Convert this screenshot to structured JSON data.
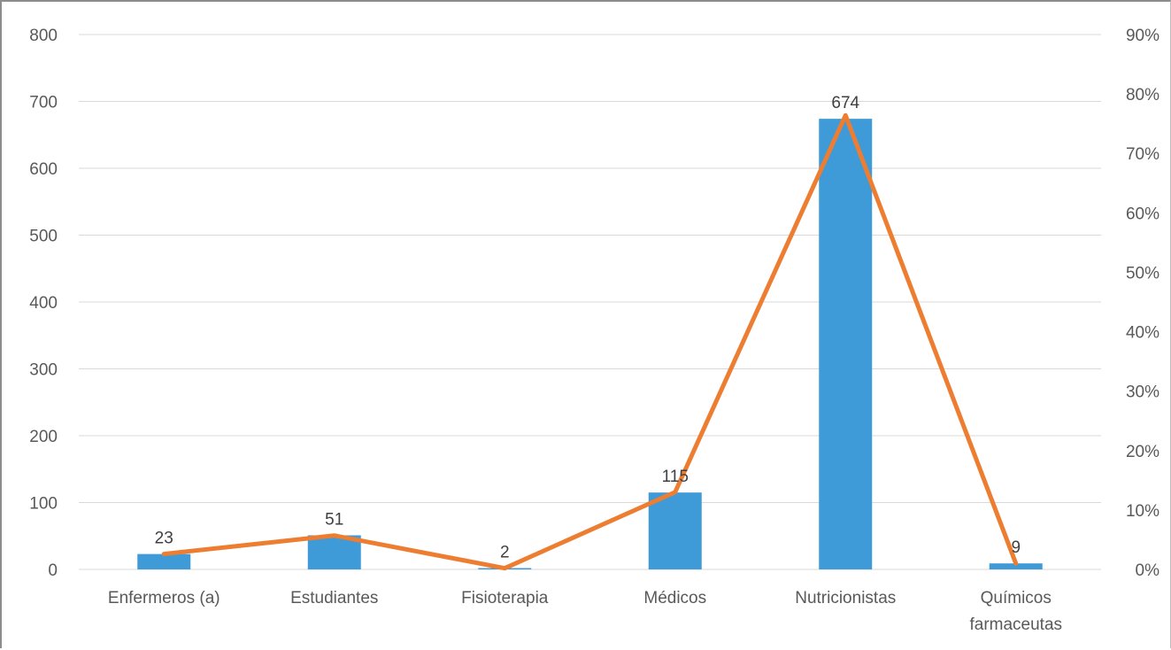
{
  "chart_data": {
    "type": "bar",
    "categories": [
      "Enfermeros (a)",
      "Estudiantes",
      "Fisioterapia",
      "Médicos",
      "Nutricionistas",
      "Químicos farmaceutas"
    ],
    "series": [
      {
        "type": "bar",
        "axis": "left",
        "values": [
          23,
          51,
          2,
          115,
          674,
          9
        ],
        "color": "#3f9bd8"
      },
      {
        "type": "line",
        "axis": "right",
        "values": [
          2.6,
          5.7,
          0.2,
          13.0,
          76.4,
          1.0
        ],
        "color": "#ed7d31"
      }
    ],
    "data_labels": [
      "23",
      "51",
      "2",
      "115",
      "674",
      "9"
    ],
    "y_left": {
      "min": 0,
      "max": 800,
      "ticks": [
        0,
        100,
        200,
        300,
        400,
        500,
        600,
        700,
        800
      ]
    },
    "y_right": {
      "min": 0,
      "max": 90,
      "ticks": [
        "0%",
        "10%",
        "20%",
        "30%",
        "40%",
        "50%",
        "60%",
        "70%",
        "80%",
        "90%"
      ]
    },
    "grid": true,
    "legend": "none"
  }
}
